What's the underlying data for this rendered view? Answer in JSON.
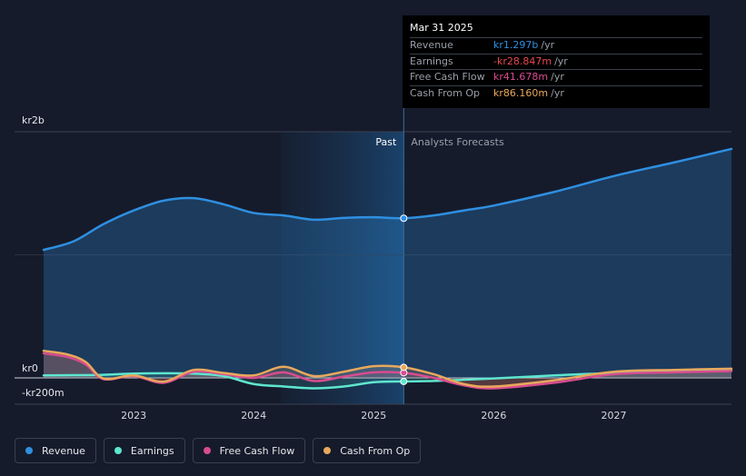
{
  "chart_data": {
    "type": "area",
    "y_axis": {
      "unit_prefix": "kr",
      "top_label": "kr2b",
      "zero_label": "kr0",
      "bottom_label": "-kr200m",
      "ylim": [
        -200,
        2000
      ],
      "units": "kr m"
    },
    "x_axis": {
      "ticks": [
        "2023",
        "2024",
        "2025",
        "2026",
        "2027"
      ],
      "xlim": [
        2022.25,
        2027.98
      ]
    },
    "periods": {
      "past_label": "Past",
      "forecast_label": "Analysts Forecasts",
      "divider_x": 2025.25,
      "highlight_start_x": 2024.23
    },
    "series": [
      {
        "name": "Revenue",
        "color": "#2f8fe0",
        "x": [
          2022.25,
          2022.5,
          2022.75,
          2023.0,
          2023.25,
          2023.5,
          2023.75,
          2024.0,
          2024.25,
          2024.5,
          2024.75,
          2025.0,
          2025.25,
          2025.5,
          2025.75,
          2026.0,
          2026.5,
          2027.0,
          2027.5,
          2027.98
        ],
        "values": [
          1040,
          1110,
          1250,
          1360,
          1440,
          1460,
          1410,
          1340,
          1320,
          1285,
          1300,
          1305,
          1297,
          1320,
          1360,
          1400,
          1510,
          1640,
          1750,
          1860
        ]
      },
      {
        "name": "Earnings",
        "color": "#5ee6cf",
        "x": [
          2022.25,
          2022.5,
          2022.75,
          2023.0,
          2023.25,
          2023.5,
          2023.75,
          2024.0,
          2024.25,
          2024.5,
          2024.75,
          2025.0,
          2025.25,
          2025.5,
          2025.75,
          2026.0,
          2026.5,
          2027.0,
          2027.5,
          2027.98
        ],
        "values": [
          20,
          22,
          25,
          35,
          38,
          35,
          15,
          -50,
          -70,
          -85,
          -70,
          -35,
          -28.847,
          -25,
          -15,
          -5,
          20,
          40,
          50,
          60
        ]
      },
      {
        "name": "Free Cash Flow",
        "color": "#d84c8f",
        "x": [
          2022.25,
          2022.45,
          2022.6,
          2022.75,
          2023.0,
          2023.25,
          2023.5,
          2023.75,
          2024.0,
          2024.25,
          2024.5,
          2024.75,
          2025.0,
          2025.25,
          2025.5,
          2025.75,
          2026.0,
          2026.5,
          2027.0,
          2027.5,
          2027.98
        ],
        "values": [
          200,
          170,
          110,
          -10,
          15,
          -40,
          50,
          30,
          0,
          45,
          -25,
          10,
          45,
          41.678,
          0,
          -60,
          -85,
          -40,
          30,
          45,
          55
        ]
      },
      {
        "name": "Cash From Op",
        "color": "#e8a85c",
        "x": [
          2022.25,
          2022.45,
          2022.6,
          2022.75,
          2023.0,
          2023.25,
          2023.5,
          2023.75,
          2024.0,
          2024.25,
          2024.5,
          2024.75,
          2025.0,
          2025.25,
          2025.5,
          2025.75,
          2026.0,
          2026.5,
          2027.0,
          2027.5,
          2027.98
        ],
        "values": [
          220,
          190,
          130,
          -5,
          20,
          -30,
          65,
          40,
          20,
          90,
          15,
          50,
          95,
          86.16,
          30,
          -50,
          -70,
          -20,
          50,
          65,
          75
        ]
      }
    ]
  },
  "tooltip": {
    "date": "Mar 31 2025",
    "rows": [
      {
        "label": "Revenue",
        "value": "kr1.297b",
        "unit": "/yr",
        "color": "#2f8fe0"
      },
      {
        "label": "Earnings",
        "value": "-kr28.847m",
        "unit": "/yr",
        "color": "#e8474f"
      },
      {
        "label": "Free Cash Flow",
        "value": "kr41.678m",
        "unit": "/yr",
        "color": "#d84c8f"
      },
      {
        "label": "Cash From Op",
        "value": "kr86.160m",
        "unit": "/yr",
        "color": "#e8a85c"
      }
    ]
  },
  "legend": [
    {
      "label": "Revenue",
      "color": "#2f8fe0"
    },
    {
      "label": "Earnings",
      "color": "#5ee6cf"
    },
    {
      "label": "Free Cash Flow",
      "color": "#d84c8f"
    },
    {
      "label": "Cash From Op",
      "color": "#e8a85c"
    }
  ]
}
